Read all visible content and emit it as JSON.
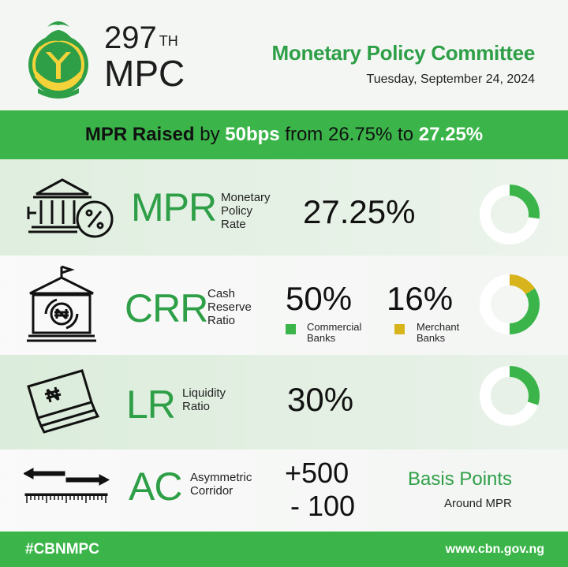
{
  "header": {
    "mpc_number": "297",
    "mpc_suffix": "TH",
    "mpc_word": "MPC",
    "committee": "Monetary Policy Committee",
    "date": "Tuesday, September 24, 2024",
    "logo_icon": "cbn-coat-of-arms-icon"
  },
  "headline": {
    "part1": "MPR Raised",
    "part2": " by ",
    "part3": "50bps",
    "part4": " from ",
    "part5": "26.75%",
    "part6": " to ",
    "part7": "27.25%"
  },
  "rows": {
    "mpr": {
      "abbr": "MPR",
      "desc_line1": "Monetary",
      "desc_line2": "Policy",
      "desc_line3": "Rate",
      "value": "27.25%",
      "donut_fraction": 0.2725,
      "icon": "bank-percent-icon"
    },
    "crr": {
      "abbr": "CRR",
      "desc_line1": "Cash",
      "desc_line2": "Reserve",
      "desc_line3": "Ratio",
      "commercial_value": "50%",
      "commercial_label_line1": "Commercial",
      "commercial_label_line2": "Banks",
      "merchant_value": "16%",
      "merchant_label_line1": "Merchant",
      "merchant_label_line2": "Banks",
      "commercial_fraction": 0.5,
      "merchant_fraction": 0.16,
      "icon": "bank-naira-icon"
    },
    "lr": {
      "abbr": "LR",
      "desc_line1": "Liquidity",
      "desc_line2": "Ratio",
      "value": "30%",
      "donut_fraction": 0.3,
      "icon": "naira-banknotes-icon"
    },
    "ac": {
      "abbr": "AC",
      "desc_line1": "Asymmetric",
      "desc_line2": "Corridor",
      "upper": "+500",
      "lower": "- 100",
      "bp_title": "Basis Points",
      "bp_sub": "Around MPR",
      "icon": "corridor-ruler-icon"
    }
  },
  "footer": {
    "hashtag": "#CBNMPC",
    "url": "www.cbn.gov.ng"
  },
  "colors": {
    "green": "#3bb54a",
    "dark_green": "#2e9f47",
    "gold": "#d8b41c",
    "ring_bg": "#ffffff"
  }
}
